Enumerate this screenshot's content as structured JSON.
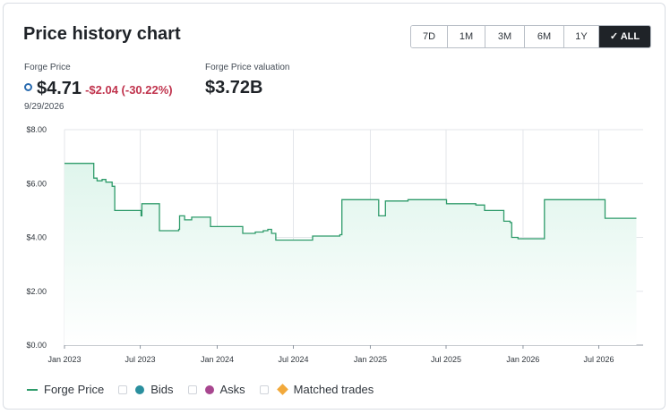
{
  "header": {
    "title": "Price history chart",
    "ranges": [
      "7D",
      "1M",
      "3M",
      "6M",
      "1Y",
      "ALL"
    ],
    "active_range": "ALL",
    "active_check": "✓"
  },
  "metrics": {
    "price_label": "Forge Price",
    "price_value": "$4.71",
    "price_change": "-$2.04 (-30.22%)",
    "price_date": "9/29/2026",
    "valuation_label": "Forge Price valuation",
    "valuation_value": "$3.72B"
  },
  "colors": {
    "line": "#2e9b6a",
    "area_top": "#dff5ec",
    "bids": "#2a8f9e",
    "asks": "#a8468f",
    "matched": "#f2a93b",
    "negative": "#c0334d"
  },
  "legend": [
    {
      "label": "Forge Price",
      "kind": "line"
    },
    {
      "label": "Bids",
      "kind": "dot",
      "icon": "teal-dot-icon"
    },
    {
      "label": "Asks",
      "kind": "dot",
      "icon": "magenta-dot-icon"
    },
    {
      "label": "Matched trades",
      "kind": "diamond",
      "icon": "orange-diamond-icon"
    }
  ],
  "chart_data": {
    "type": "line",
    "title": "",
    "xlabel": "",
    "ylabel": "",
    "ylim": [
      0,
      8
    ],
    "y_ticks": [
      0,
      2,
      4,
      6,
      8
    ],
    "y_tick_labels": [
      "$0.00",
      "$2.00",
      "$4.00",
      "$6.00",
      "$8.00"
    ],
    "x_ticks": [
      "2023-01-01",
      "2023-07-01",
      "2024-01-01",
      "2024-07-01",
      "2025-01-01",
      "2025-07-01",
      "2026-01-01",
      "2026-07-01"
    ],
    "x_tick_labels": [
      "Jan 2023",
      "Jul 2023",
      "Jan 2024",
      "Jul 2024",
      "Jan 2025",
      "Jul 2025",
      "Jan 2026",
      "Jul 2026"
    ],
    "xlim": [
      "2023-01-01",
      "2026-10-15"
    ],
    "grid": true,
    "legend_position": "bottom-left",
    "series": [
      {
        "name": "Forge Price",
        "style": "step-area",
        "points": [
          [
            "2023-01-01",
            6.75
          ],
          [
            "2023-03-10",
            6.75
          ],
          [
            "2023-03-12",
            6.2
          ],
          [
            "2023-03-20",
            6.1
          ],
          [
            "2023-04-01",
            6.15
          ],
          [
            "2023-04-10",
            6.05
          ],
          [
            "2023-04-25",
            5.9
          ],
          [
            "2023-05-01",
            5.0
          ],
          [
            "2023-07-01",
            5.0
          ],
          [
            "2023-07-03",
            4.8
          ],
          [
            "2023-07-05",
            5.25
          ],
          [
            "2023-08-15",
            5.25
          ],
          [
            "2023-08-16",
            4.25
          ],
          [
            "2023-10-01",
            4.3
          ],
          [
            "2023-10-03",
            4.8
          ],
          [
            "2023-10-15",
            4.65
          ],
          [
            "2023-11-01",
            4.75
          ],
          [
            "2023-12-15",
            4.75
          ],
          [
            "2023-12-16",
            4.4
          ],
          [
            "2024-03-01",
            4.4
          ],
          [
            "2024-03-02",
            4.15
          ],
          [
            "2024-04-01",
            4.2
          ],
          [
            "2024-04-20",
            4.25
          ],
          [
            "2024-05-01",
            4.3
          ],
          [
            "2024-05-10",
            4.15
          ],
          [
            "2024-05-20",
            3.9
          ],
          [
            "2024-08-15",
            3.9
          ],
          [
            "2024-08-16",
            4.05
          ],
          [
            "2024-10-15",
            4.05
          ],
          [
            "2024-10-20",
            4.1
          ],
          [
            "2024-10-25",
            5.4
          ],
          [
            "2025-01-20",
            5.4
          ],
          [
            "2025-01-21",
            4.8
          ],
          [
            "2025-02-05",
            4.8
          ],
          [
            "2025-02-06",
            5.35
          ],
          [
            "2025-04-01",
            5.4
          ],
          [
            "2025-07-01",
            5.4
          ],
          [
            "2025-07-02",
            5.25
          ],
          [
            "2025-09-01",
            5.25
          ],
          [
            "2025-09-10",
            5.2
          ],
          [
            "2025-10-01",
            5.0
          ],
          [
            "2025-11-15",
            5.0
          ],
          [
            "2025-11-16",
            4.6
          ],
          [
            "2025-12-01",
            4.55
          ],
          [
            "2025-12-05",
            4.0
          ],
          [
            "2025-12-20",
            3.95
          ],
          [
            "2026-02-20",
            3.95
          ],
          [
            "2026-02-21",
            5.4
          ],
          [
            "2026-07-15",
            5.4
          ],
          [
            "2026-07-16",
            4.71
          ],
          [
            "2026-09-29",
            4.71
          ]
        ]
      }
    ]
  }
}
